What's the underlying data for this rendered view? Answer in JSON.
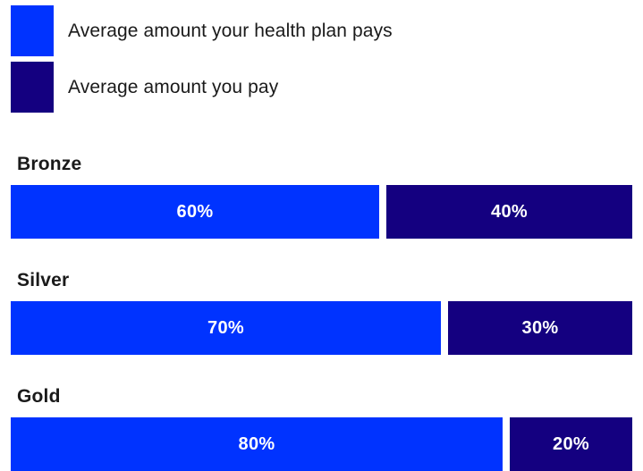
{
  "colors": {
    "plan_pays": "#0033ff",
    "you_pay": "#140080"
  },
  "legend": [
    {
      "label": "Average amount your health plan pays",
      "color": "#0033ff"
    },
    {
      "label": "Average amount you pay",
      "color": "#140080"
    }
  ],
  "chart_data": {
    "type": "bar",
    "orientation": "horizontal-stacked",
    "categories": [
      "Bronze",
      "Silver",
      "Gold"
    ],
    "series": [
      {
        "name": "Average amount your health plan pays",
        "values": [
          60,
          70,
          80
        ],
        "labels": [
          "60%",
          "70%",
          "80%"
        ]
      },
      {
        "name": "Average amount you pay",
        "values": [
          40,
          30,
          20
        ],
        "labels": [
          "40%",
          "30%",
          "20%"
        ]
      }
    ],
    "xlim": [
      0,
      100
    ],
    "grid": false,
    "legend_position": "top-left"
  }
}
